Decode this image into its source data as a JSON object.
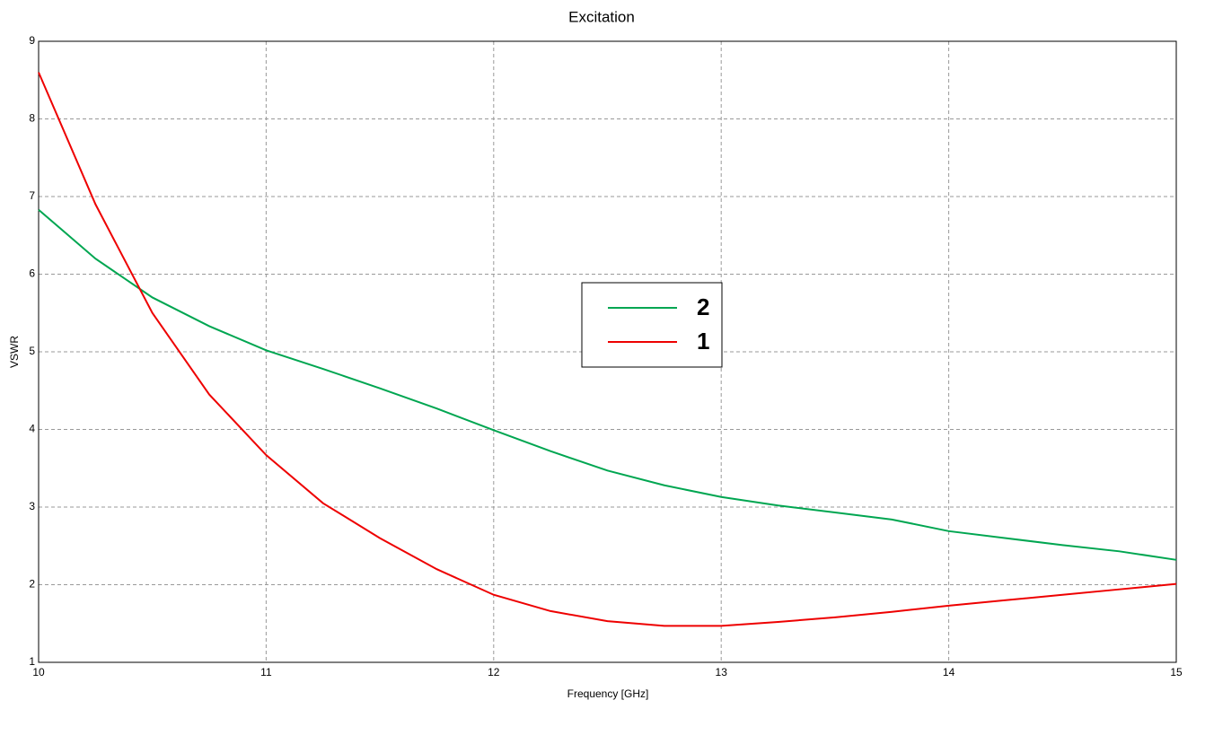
{
  "chart_data": {
    "type": "line",
    "title": "Excitation",
    "x_label": "Frequency [GHz]",
    "y_label": "VSWR",
    "x": [
      10,
      10.25,
      10.5,
      10.75,
      11,
      11.25,
      11.5,
      11.75,
      12,
      12.25,
      12.5,
      12.75,
      13,
      13.25,
      13.5,
      13.75,
      14,
      14.25,
      14.5,
      14.75,
      15
    ],
    "series": [
      {
        "name": "2",
        "color": "#00a651",
        "values": [
          6.83,
          6.2,
          5.7,
          5.33,
          5.02,
          4.78,
          4.53,
          4.27,
          3.99,
          3.72,
          3.47,
          3.28,
          3.13,
          3.02,
          2.93,
          2.84,
          2.69,
          2.6,
          2.51,
          2.43,
          2.32
        ]
      },
      {
        "name": "1",
        "color": "#ee0000",
        "values": [
          8.6,
          6.9,
          5.5,
          4.45,
          3.67,
          3.05,
          2.6,
          2.2,
          1.87,
          1.66,
          1.53,
          1.47,
          1.47,
          1.52,
          1.58,
          1.65,
          1.73,
          1.8,
          1.87,
          1.94,
          2.01
        ]
      }
    ],
    "xlim": [
      10,
      15
    ],
    "xticks": [
      10,
      11,
      12,
      13,
      14,
      15
    ],
    "ylim": [
      1,
      9
    ],
    "yticks": [
      1,
      2,
      3,
      4,
      5,
      6,
      7,
      8,
      9
    ],
    "grid": true,
    "legend": "center"
  }
}
